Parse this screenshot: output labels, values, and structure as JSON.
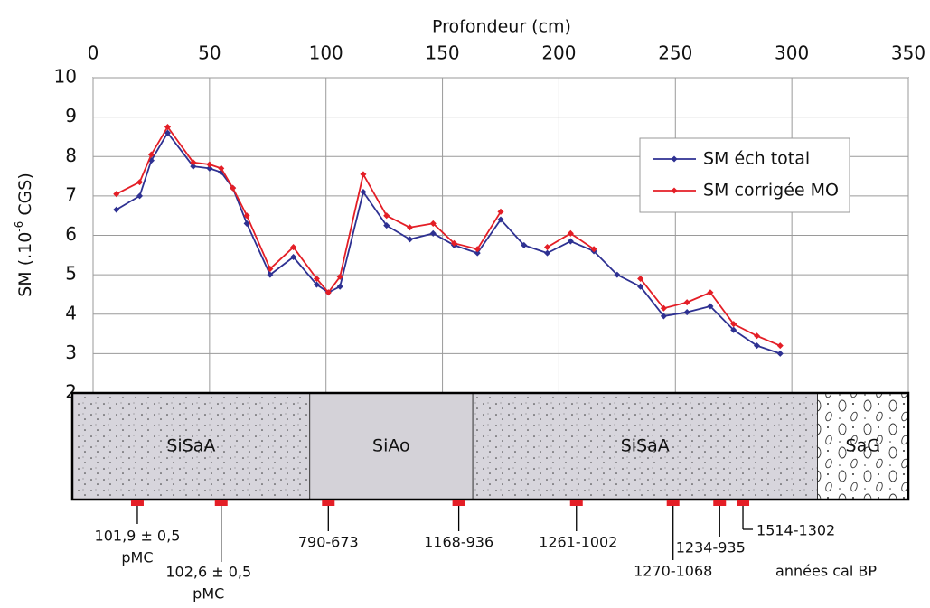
{
  "chart_data": {
    "type": "line",
    "xlabel": "Profondeur (cm)",
    "ylabel": [
      "SM (.10",
      "-6",
      " CGS)"
    ],
    "xlim": [
      0,
      350
    ],
    "xticks": [
      0,
      50,
      100,
      150,
      200,
      250,
      300,
      350
    ],
    "ylim": [
      2,
      10
    ],
    "yticks": [
      2,
      3,
      4,
      5,
      6,
      7,
      8,
      9,
      10
    ],
    "grid": true,
    "x": [
      10,
      20,
      25,
      32,
      43,
      50,
      55,
      60,
      66,
      76,
      86,
      96,
      101,
      106,
      116,
      126,
      136,
      146,
      155,
      165,
      175,
      185,
      195,
      205,
      215,
      225,
      235,
      245,
      255,
      265,
      275,
      285,
      295
    ],
    "series": [
      {
        "name": "SM éch total",
        "color": "#2e3192",
        "values": [
          6.65,
          7.0,
          7.9,
          8.6,
          7.75,
          7.7,
          7.6,
          7.2,
          6.3,
          5.0,
          5.45,
          4.75,
          4.55,
          4.7,
          7.1,
          6.25,
          5.9,
          6.05,
          5.75,
          5.55,
          6.4,
          5.75,
          5.55,
          5.85,
          5.6,
          5.0,
          4.7,
          3.95,
          4.05,
          4.2,
          3.6,
          3.2,
          3.0
        ]
      },
      {
        "name": "SM corrigée MO",
        "color": "#e41e26",
        "values": [
          7.05,
          7.35,
          8.05,
          8.75,
          7.85,
          7.8,
          7.7,
          7.2,
          6.5,
          5.15,
          5.7,
          4.9,
          4.55,
          4.95,
          7.55,
          6.5,
          6.2,
          6.3,
          5.8,
          5.65,
          6.6,
          null,
          5.7,
          6.05,
          5.65,
          null,
          4.9,
          4.15,
          4.3,
          4.55,
          3.75,
          3.45,
          3.2
        ]
      }
    ],
    "lithology": {
      "layers": [
        {
          "label": "SiSaA",
          "pattern": "dots"
        },
        {
          "label": "SiAo",
          "pattern": "plain"
        },
        {
          "label": "SiSaA",
          "pattern": "dots"
        },
        {
          "label": "SaG",
          "pattern": "gravel"
        }
      ],
      "boundaries": [
        93,
        163,
        311
      ]
    },
    "dates": [
      {
        "depth": 19,
        "label": [
          "101,9 ± 0,5",
          "pMC"
        ]
      },
      {
        "depth": 55,
        "label": [
          "102,6 ± 0,5",
          "pMC"
        ]
      },
      {
        "depth": 101,
        "label": [
          "790-673"
        ]
      },
      {
        "depth": 157,
        "label": [
          "1168-936"
        ]
      },
      {
        "depth": 207.5,
        "label": [
          "1261-1002"
        ]
      },
      {
        "depth": 249,
        "label": [
          "1270-1068"
        ]
      },
      {
        "depth": 269,
        "label": [
          "1234-935"
        ]
      },
      {
        "depth": 279,
        "label": [
          "1514-1302"
        ]
      }
    ],
    "dates_unit": "années cal BP"
  }
}
